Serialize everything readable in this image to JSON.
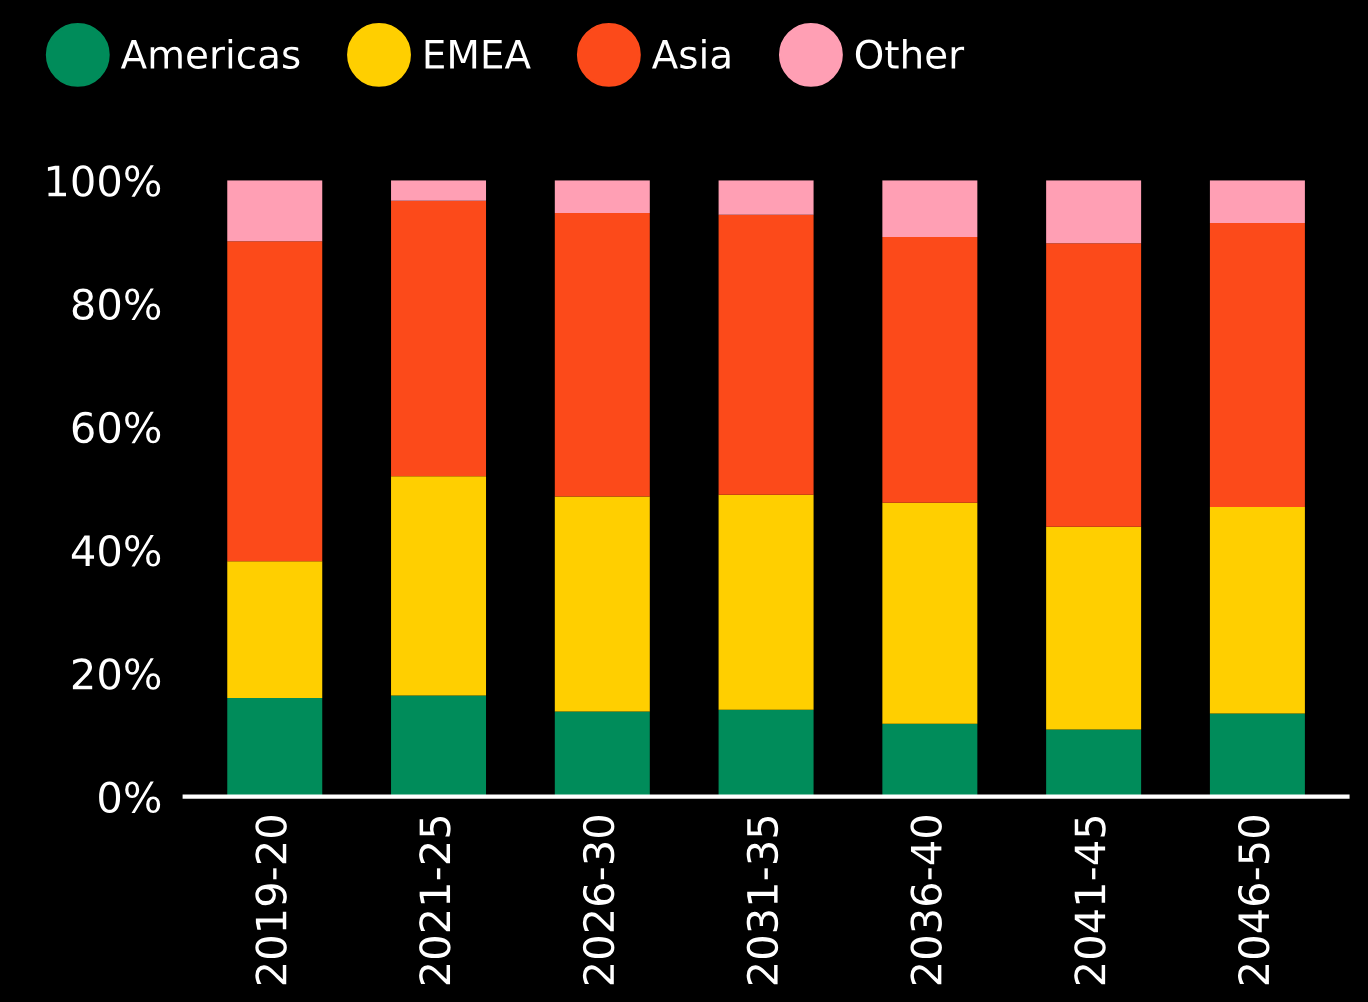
{
  "chart_data": {
    "type": "bar",
    "stacked": true,
    "categories": [
      "2019-20",
      "2021-25",
      "2026-30",
      "2031-35",
      "2036-40",
      "2041-45",
      "2046-50"
    ],
    "series": [
      {
        "name": "Americas",
        "color": "#008c5a",
        "values": [
          16,
          16.4,
          13.8,
          14.1,
          11.8,
          10.9,
          13.5
        ]
      },
      {
        "name": "EMEA",
        "color": "#ffcf00",
        "values": [
          22.2,
          35.6,
          34.9,
          34.9,
          35.9,
          32.9,
          33.5
        ]
      },
      {
        "name": "Asia",
        "color": "#fc4a1a",
        "values": [
          51.9,
          44.7,
          46,
          45.4,
          43.1,
          46,
          46.1
        ]
      },
      {
        "name": "Other",
        "color": "#ff9fb4",
        "values": [
          9.9,
          3.3,
          5.3,
          5.6,
          9.2,
          10.2,
          6.9
        ]
      }
    ],
    "ylim": [
      0,
      100
    ],
    "yticks": [
      {
        "value": 0,
        "label": "0%"
      },
      {
        "value": 20,
        "label": "20%"
      },
      {
        "value": 40,
        "label": "40%"
      },
      {
        "value": 60,
        "label": "60%"
      },
      {
        "value": 80,
        "label": "80%"
      },
      {
        "value": 100,
        "label": "100%"
      }
    ],
    "legend": "top left",
    "grid": false
  }
}
